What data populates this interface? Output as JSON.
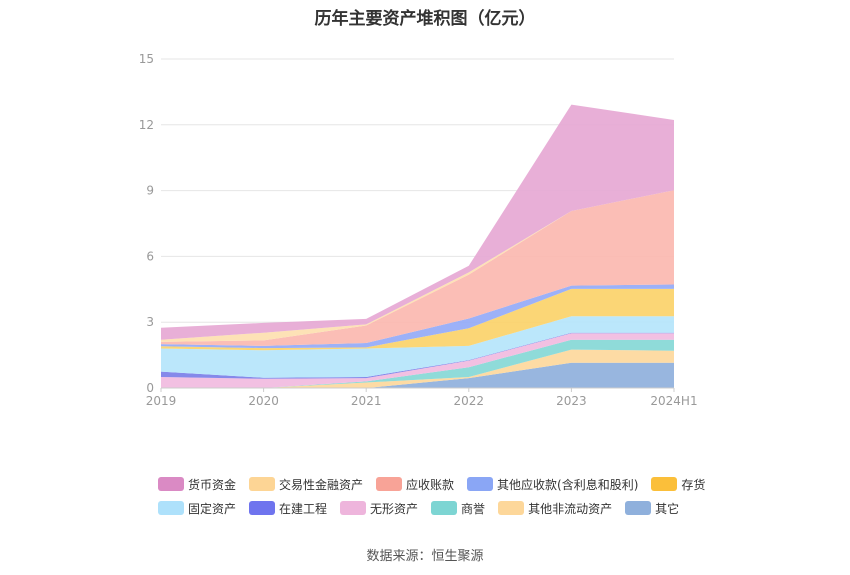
{
  "chart_data": {
    "type": "area",
    "stacked": true,
    "title": "历年主要资产堆积图（亿元）",
    "categories": [
      "2019",
      "2020",
      "2021",
      "2022",
      "2023",
      "2024H1"
    ],
    "ylim": [
      0,
      15
    ],
    "yticks": [
      "0",
      "3",
      "6",
      "9",
      "12",
      "15"
    ],
    "grid": true,
    "legend_position": "bottom",
    "series": [
      {
        "name": "其它",
        "color": "#8fb0dc",
        "values": [
          0,
          0,
          0,
          0.45,
          1.15,
          1.15
        ]
      },
      {
        "name": "其他非流动资产",
        "color": "#fdd89c",
        "values": [
          0,
          0,
          0.25,
          0.05,
          0.6,
          0.55
        ]
      },
      {
        "name": "商誉",
        "color": "#86d8d6",
        "values": [
          0,
          0,
          0.05,
          0.45,
          0.45,
          0.5
        ]
      },
      {
        "name": "无形资产",
        "color": "#f1bbe0",
        "values": [
          0.5,
          0.42,
          0.15,
          0.3,
          0.3,
          0.3
        ]
      },
      {
        "name": "在建工程",
        "color": "#7b7fe8",
        "values": [
          0.25,
          0.05,
          0.05,
          0.02,
          0.02,
          0.02
        ]
      },
      {
        "name": "固定资产",
        "color": "#b5e5fb",
        "values": [
          1.05,
          1.25,
          1.3,
          0.65,
          0.75,
          0.75
        ]
      },
      {
        "name": "存货",
        "color": "#fbd36a",
        "values": [
          0.1,
          0.1,
          0.05,
          0.8,
          1.25,
          1.25
        ]
      },
      {
        "name": "其他应收款(含利息和股利)",
        "color": "#94aaf7",
        "values": [
          0.1,
          0.1,
          0.2,
          0.45,
          0.15,
          0.2
        ]
      },
      {
        "name": "应收账款",
        "color": "#fbb8b0",
        "values": [
          0.1,
          0.25,
          0.8,
          2.0,
          3.4,
          4.3
        ]
      },
      {
        "name": "交易性金融资产",
        "color": "#fde0b0",
        "values": [
          0.1,
          0.35,
          0.05,
          0.1,
          0,
          0
        ]
      },
      {
        "name": "货币资金",
        "color": "#e6a8d4",
        "values": [
          0.55,
          0.45,
          0.25,
          0.3,
          4.85,
          3.2
        ]
      }
    ],
    "legend": [
      [
        "货币资金",
        "交易性金融资产",
        "应收账款",
        "其他应收款(含利息和股利)",
        "存货"
      ],
      [
        "固定资产",
        "在建工程",
        "无形资产",
        "商誉",
        "其他非流动资产",
        "其它"
      ]
    ]
  },
  "legend_colors": {
    "货币资金": "#da8ac4",
    "交易性金融资产": "#fdd595",
    "应收账款": "#f8a397",
    "其他应收款(含利息和股利)": "#8aa6f5",
    "存货": "#fbbf3a",
    "固定资产": "#aee1fb",
    "在建工程": "#6f74ee",
    "无形资产": "#eeb5dc",
    "商誉": "#7dd5d3",
    "其他非流动资产": "#fdd79a",
    "其它": "#8fb0dc"
  },
  "footer": {
    "source": "数据来源：恒生聚源"
  }
}
